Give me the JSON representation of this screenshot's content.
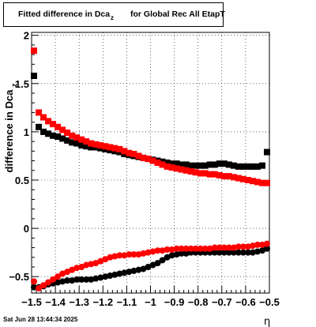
{
  "chart_data": {
    "type": "scatter",
    "title": {
      "main": "Fitted difference in Dca",
      "subscript": "z",
      "rest": "for Global Rec All EtapT"
    },
    "ylabel": {
      "main": "difference in Dca",
      "subscript": "z"
    },
    "xlabel": "η",
    "xlim": [
      -1.5,
      -0.5
    ],
    "ylim": [
      -0.67,
      2.03
    ],
    "x_ticks": [
      -1.5,
      -1.4,
      -1.3,
      -1.2,
      -1.1,
      -1.0,
      -0.9,
      -0.8,
      -0.7,
      -0.6,
      -0.5
    ],
    "x_tick_labels": [
      "−1.5",
      "−1.4",
      "−1.3",
      "−1.2",
      "−1.1",
      "−1",
      "−0.9",
      "−0.8",
      "−0.7",
      "−0.6",
      "−0.5"
    ],
    "y_ticks": [
      -0.5,
      0,
      0.5,
      1,
      1.5,
      2
    ],
    "y_tick_labels": [
      "−0.5",
      "0",
      "0.5",
      "1",
      "1.5",
      "2"
    ],
    "grid": true,
    "series": [
      {
        "color": "#000000",
        "marker": "square",
        "x": [
          -1.49,
          -1.47,
          -1.45,
          -1.43,
          -1.41,
          -1.39,
          -1.37,
          -1.35,
          -1.33,
          -1.31,
          -1.29,
          -1.27,
          -1.25,
          -1.23,
          -1.21,
          -1.19,
          -1.17,
          -1.15,
          -1.13,
          -1.11,
          -1.09,
          -1.07,
          -1.05,
          -1.03,
          -1.01,
          -0.99,
          -0.97,
          -0.95,
          -0.93,
          -0.91,
          -0.89,
          -0.87,
          -0.85,
          -0.83,
          -0.81,
          -0.79,
          -0.77,
          -0.75,
          -0.73,
          -0.71,
          -0.69,
          -0.67,
          -0.65,
          -0.63,
          -0.61,
          -0.59,
          -0.57,
          -0.55,
          -0.53,
          -0.51
        ],
        "y": [
          1.58,
          1.05,
          1.0,
          0.98,
          0.96,
          0.95,
          0.93,
          0.91,
          0.89,
          0.88,
          0.86,
          0.85,
          0.84,
          0.84,
          0.83,
          0.82,
          0.81,
          0.8,
          0.79,
          0.77,
          0.76,
          0.75,
          0.74,
          0.73,
          0.72,
          0.71,
          0.7,
          0.69,
          0.68,
          0.67,
          0.67,
          0.66,
          0.66,
          0.65,
          0.65,
          0.65,
          0.65,
          0.66,
          0.66,
          0.67,
          0.67,
          0.66,
          0.65,
          0.64,
          0.64,
          0.64,
          0.64,
          0.64,
          0.65,
          0.79
        ]
      },
      {
        "color": "#ff0000",
        "marker": "square",
        "x": [
          -1.49,
          -1.47,
          -1.45,
          -1.43,
          -1.41,
          -1.39,
          -1.37,
          -1.35,
          -1.33,
          -1.31,
          -1.29,
          -1.27,
          -1.25,
          -1.23,
          -1.21,
          -1.19,
          -1.17,
          -1.15,
          -1.13,
          -1.11,
          -1.09,
          -1.07,
          -1.05,
          -1.03,
          -1.01,
          -0.99,
          -0.97,
          -0.95,
          -0.93,
          -0.91,
          -0.89,
          -0.87,
          -0.85,
          -0.83,
          -0.81,
          -0.79,
          -0.77,
          -0.75,
          -0.73,
          -0.71,
          -0.69,
          -0.67,
          -0.65,
          -0.63,
          -0.61,
          -0.59,
          -0.57,
          -0.55,
          -0.53,
          -0.51
        ],
        "y": [
          1.84,
          1.2,
          1.15,
          1.11,
          1.08,
          1.05,
          1.02,
          0.99,
          0.96,
          0.94,
          0.92,
          0.9,
          0.88,
          0.87,
          0.86,
          0.85,
          0.84,
          0.83,
          0.82,
          0.8,
          0.78,
          0.77,
          0.75,
          0.73,
          0.72,
          0.7,
          0.68,
          0.66,
          0.64,
          0.63,
          0.62,
          0.61,
          0.6,
          0.59,
          0.58,
          0.57,
          0.57,
          0.56,
          0.56,
          0.55,
          0.54,
          0.54,
          0.53,
          0.52,
          0.51,
          0.5,
          0.49,
          0.48,
          0.47,
          0.47
        ]
      },
      {
        "color": "#000000",
        "marker": "circle",
        "x": [
          -1.49,
          -1.47,
          -1.45,
          -1.43,
          -1.41,
          -1.39,
          -1.37,
          -1.35,
          -1.33,
          -1.31,
          -1.29,
          -1.27,
          -1.25,
          -1.23,
          -1.21,
          -1.19,
          -1.17,
          -1.15,
          -1.13,
          -1.11,
          -1.09,
          -1.07,
          -1.05,
          -1.03,
          -1.01,
          -0.99,
          -0.97,
          -0.95,
          -0.93,
          -0.91,
          -0.89,
          -0.87,
          -0.85,
          -0.83,
          -0.81,
          -0.79,
          -0.77,
          -0.75,
          -0.73,
          -0.71,
          -0.69,
          -0.67,
          -0.65,
          -0.63,
          -0.61,
          -0.59,
          -0.57,
          -0.55,
          -0.53,
          -0.51
        ],
        "y": [
          -0.61,
          -0.61,
          -0.6,
          -0.58,
          -0.57,
          -0.56,
          -0.55,
          -0.54,
          -0.54,
          -0.53,
          -0.53,
          -0.53,
          -0.53,
          -0.52,
          -0.51,
          -0.5,
          -0.49,
          -0.48,
          -0.47,
          -0.46,
          -0.45,
          -0.44,
          -0.43,
          -0.42,
          -0.4,
          -0.38,
          -0.36,
          -0.33,
          -0.3,
          -0.28,
          -0.27,
          -0.26,
          -0.26,
          -0.25,
          -0.25,
          -0.25,
          -0.25,
          -0.25,
          -0.25,
          -0.25,
          -0.25,
          -0.25,
          -0.25,
          -0.25,
          -0.25,
          -0.25,
          -0.25,
          -0.24,
          -0.23,
          -0.21
        ]
      },
      {
        "color": "#ff0000",
        "marker": "circle",
        "x": [
          -1.49,
          -1.47,
          -1.45,
          -1.43,
          -1.41,
          -1.39,
          -1.37,
          -1.35,
          -1.33,
          -1.31,
          -1.29,
          -1.27,
          -1.25,
          -1.23,
          -1.21,
          -1.19,
          -1.17,
          -1.15,
          -1.13,
          -1.11,
          -1.09,
          -1.07,
          -1.05,
          -1.03,
          -1.01,
          -0.99,
          -0.97,
          -0.95,
          -0.93,
          -0.91,
          -0.89,
          -0.87,
          -0.85,
          -0.83,
          -0.81,
          -0.79,
          -0.77,
          -0.75,
          -0.73,
          -0.71,
          -0.69,
          -0.67,
          -0.65,
          -0.63,
          -0.61,
          -0.59,
          -0.57,
          -0.55,
          -0.53,
          -0.51
        ],
        "y": [
          -0.55,
          -0.62,
          -0.59,
          -0.56,
          -0.53,
          -0.5,
          -0.47,
          -0.45,
          -0.43,
          -0.41,
          -0.4,
          -0.38,
          -0.37,
          -0.36,
          -0.34,
          -0.32,
          -0.3,
          -0.29,
          -0.28,
          -0.28,
          -0.27,
          -0.27,
          -0.27,
          -0.26,
          -0.25,
          -0.24,
          -0.23,
          -0.23,
          -0.22,
          -0.22,
          -0.21,
          -0.21,
          -0.21,
          -0.21,
          -0.21,
          -0.21,
          -0.21,
          -0.21,
          -0.2,
          -0.2,
          -0.2,
          -0.2,
          -0.2,
          -0.19,
          -0.19,
          -0.19,
          -0.18,
          -0.17,
          -0.17,
          -0.16
        ]
      }
    ]
  },
  "timestamp": "Sat Jun 28 13:44:34 2025"
}
